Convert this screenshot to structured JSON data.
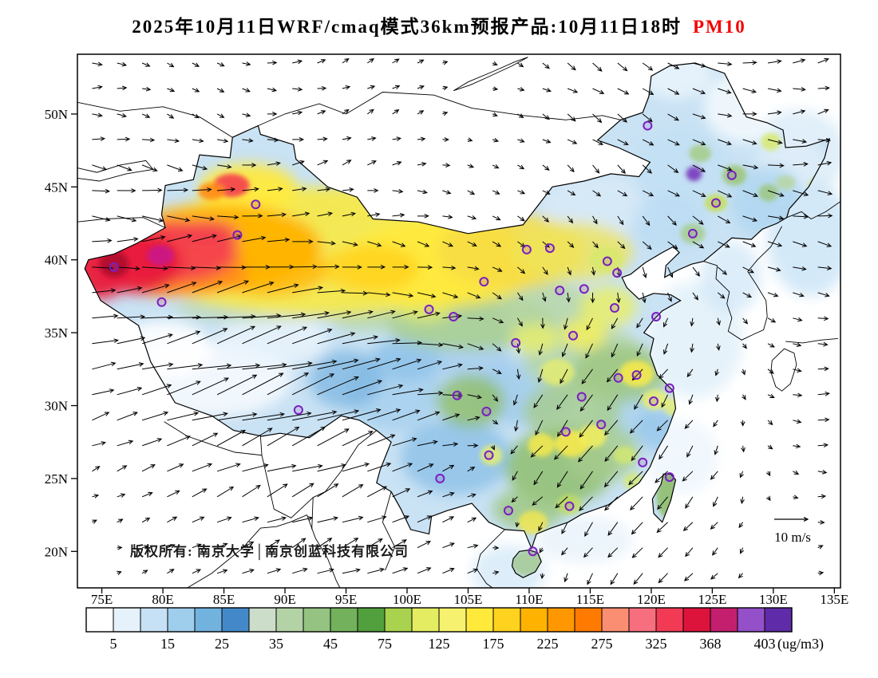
{
  "title": {
    "main": "2025年10月11日WRF/cmaq模式36km预报产品:10月11日18时",
    "pollutant": "PM10",
    "pollutant_color": "#f40000"
  },
  "map": {
    "copyright": "版权所有: 南京大学│南京创蓝科技有限公司",
    "wind_ref_label": "10 m/s"
  },
  "axes": {
    "lat": {
      "values": [
        20,
        25,
        30,
        35,
        40,
        45,
        50
      ],
      "labels": [
        "20N",
        "25N",
        "30N",
        "35N",
        "40N",
        "45N",
        "50N"
      ]
    },
    "lon": {
      "values": [
        75,
        80,
        85,
        90,
        95,
        100,
        105,
        110,
        115,
        120,
        125,
        130,
        135
      ],
      "labels": [
        "75E",
        "80E",
        "85E",
        "90E",
        "95E",
        "100E",
        "105E",
        "110E",
        "115E",
        "120E",
        "125E",
        "130E",
        "135E"
      ]
    }
  },
  "colorbar": {
    "unit": "(ug/m3)",
    "labels": [
      "5",
      "15",
      "25",
      "35",
      "45",
      "75",
      "125",
      "175",
      "225",
      "275",
      "325",
      "368",
      "403"
    ],
    "colors": [
      "#FFFFFF",
      "#E6F2FB",
      "#C6E1F5",
      "#9FCDEC",
      "#72B2DF",
      "#4389C9",
      "#CCDDC9",
      "#B3D2A6",
      "#95C381",
      "#73B15C",
      "#529F3E",
      "#A9D24E",
      "#E4EC62",
      "#F7F170",
      "#FFE93B",
      "#FFD21F",
      "#FFB300",
      "#FF9800",
      "#FF7A00",
      "#FA8E72",
      "#F76F7E",
      "#F23A55",
      "#DC143C",
      "#C41E6E",
      "#9450C8",
      "#5F2BA8"
    ]
  },
  "chart_data": {
    "type": "heatmap",
    "title": "2025年10月11日WRF/cmaq模式36km预报产品:10月11日18时 PM10",
    "pollutant": "PM10",
    "unit": "ug/m3",
    "lon_axis_deg": [
      75,
      135
    ],
    "lat_axis_deg": [
      20,
      50
    ],
    "colorbar_labels": [
      5,
      15,
      25,
      35,
      45,
      75,
      125,
      175,
      225,
      275,
      325,
      368,
      403
    ],
    "wind_reference_ms": 10,
    "base_fill": "#C9E2F4",
    "field_blobs": [
      [
        84,
        31.8,
        6.5,
        2.6,
        "#F2F8FD",
        0.95
      ],
      [
        80,
        33.8,
        4,
        2,
        "#FFFFFF",
        0.9
      ],
      [
        89,
        34.5,
        4.5,
        1.8,
        "#E9F3FB",
        0.85
      ],
      [
        127.8,
        50.5,
        3.5,
        2.5,
        "#F2F8FD",
        0.9
      ],
      [
        122,
        52.8,
        3,
        1.8,
        "#EAF4FB",
        0.85
      ],
      [
        131.5,
        46.5,
        3,
        2,
        "#E2EFF9",
        0.8
      ],
      [
        99,
        31,
        4,
        2.8,
        "#A9D2EE",
        0.9
      ],
      [
        95,
        31.8,
        3,
        2,
        "#79B4E0",
        0.7
      ],
      [
        104,
        26.5,
        4.5,
        2.6,
        "#8FC2E8",
        0.85
      ],
      [
        109.5,
        30.8,
        4,
        2.2,
        "#9FCBEC",
        0.8
      ],
      [
        118,
        29.5,
        2.5,
        1.8,
        "#A9D2EE",
        0.8
      ],
      [
        120.8,
        28.3,
        2,
        1.5,
        "#8FC2E8",
        0.7
      ],
      [
        116,
        43.8,
        5,
        2,
        "#D8EAF7",
        0.85
      ],
      [
        122.5,
        46,
        4,
        3,
        "#C2DFF3",
        0.85
      ],
      [
        129.5,
        44,
        3,
        2.5,
        "#AFD6F0",
        0.8
      ],
      [
        121.5,
        42.5,
        3,
        2,
        "#BBDCF2",
        0.8
      ],
      [
        100,
        33.2,
        3,
        1.5,
        "#8FC2E8",
        0.8
      ],
      [
        111.5,
        32.5,
        2.5,
        1.5,
        "#ABD3EE",
        0.7
      ],
      [
        105.5,
        33,
        3,
        1.5,
        "#9FCBEC",
        0.7
      ],
      [
        105,
        35.8,
        7,
        2,
        "#A6CC8C",
        0.85
      ],
      [
        111.5,
        36.5,
        4,
        2,
        "#B7D6A2",
        0.8
      ],
      [
        114.5,
        33.2,
        5,
        2.4,
        "#B7D6A2",
        0.8
      ],
      [
        117.5,
        32.2,
        4,
        2,
        "#9CC57E",
        0.8
      ],
      [
        113.5,
        29.6,
        4,
        2,
        "#A6CC8C",
        0.8
      ],
      [
        112.5,
        25.8,
        4.5,
        2.6,
        "#8FBE6E",
        0.85
      ],
      [
        116,
        26.8,
        3,
        2,
        "#A6CC8C",
        0.8
      ],
      [
        110,
        22.9,
        3,
        1.4,
        "#9CC57E",
        0.8
      ],
      [
        105.2,
        30.3,
        2.8,
        1.8,
        "#8FBE6E",
        0.85
      ],
      [
        96.5,
        36.3,
        3,
        1.2,
        "#B7D6A2",
        0.8
      ],
      [
        92.5,
        37,
        2.5,
        1.1,
        "#CADFB8",
        0.75
      ],
      [
        121.5,
        23.9,
        1.1,
        1.7,
        "#8FBE6E",
        0.9
      ],
      [
        110,
        19.2,
        1.5,
        0.9,
        "#9CC57E",
        0.7
      ],
      [
        90,
        43.2,
        6,
        1.4,
        "#B7D6A2",
        0.6
      ],
      [
        96,
        43.6,
        5,
        1.4,
        "#CADFB8",
        0.55
      ],
      [
        88,
        36.7,
        7,
        1,
        "#B7D6A2",
        0.6
      ],
      [
        126.8,
        45.8,
        1,
        0.7,
        "#9CC57E",
        0.9
      ],
      [
        124,
        47.3,
        0.9,
        0.6,
        "#A6CC8C",
        0.9
      ],
      [
        129.6,
        44.6,
        0.8,
        0.6,
        "#9CC57E",
        0.85
      ],
      [
        131,
        45.3,
        0.8,
        0.5,
        "#B7D6A2",
        0.85
      ],
      [
        125.3,
        43.9,
        0.9,
        0.6,
        "#C3DE58",
        0.9
      ],
      [
        123.4,
        41.8,
        1,
        0.7,
        "#A6CC8C",
        0.85
      ],
      [
        101.5,
        36.6,
        2.2,
        0.9,
        "#DDE96E",
        0.85
      ],
      [
        110.5,
        34.6,
        2,
        1,
        "#E8EF6A",
        0.8
      ],
      [
        116.5,
        36.8,
        2.3,
        1.4,
        "#E8EF6A",
        0.85
      ],
      [
        114.5,
        34.9,
        1.8,
        1.1,
        "#F2EF5E",
        0.85
      ],
      [
        118.8,
        32.2,
        1.4,
        0.9,
        "#F5E94E",
        0.9
      ],
      [
        113.5,
        27.4,
        1.4,
        0.9,
        "#F5E94E",
        0.9
      ],
      [
        115.2,
        27.9,
        1.1,
        0.8,
        "#F2EF5E",
        0.85
      ],
      [
        111,
        27.3,
        1.1,
        0.8,
        "#F5E94E",
        0.85
      ],
      [
        110.3,
        22,
        1.2,
        0.8,
        "#F5E94E",
        0.8
      ],
      [
        106.9,
        26.6,
        0.9,
        0.7,
        "#E8EF6A",
        0.8
      ],
      [
        120.3,
        30.4,
        1.1,
        0.7,
        "#E8EF6A",
        0.8
      ],
      [
        112.3,
        32.3,
        1.4,
        0.9,
        "#E8EF6A",
        0.75
      ],
      [
        116.3,
        40,
        1.4,
        0.9,
        "#D6E96A",
        0.8
      ],
      [
        117.8,
        26.6,
        0.9,
        0.6,
        "#D6E96A",
        0.75
      ],
      [
        121.9,
        29.9,
        0.9,
        0.6,
        "#E8EF6A",
        0.75
      ],
      [
        129.8,
        48.1,
        0.8,
        0.6,
        "#D6E96A",
        0.85
      ],
      [
        133.6,
        45.1,
        0.7,
        0.5,
        "#C3DE58",
        0.8
      ],
      [
        118.5,
        24.8,
        0.8,
        0.6,
        "#D6E96A",
        0.7
      ],
      [
        113.3,
        23.2,
        1,
        0.7,
        "#C3DE58",
        0.75
      ],
      [
        93,
        40.6,
        16,
        4.4,
        "#F5E94E",
        0.95
      ],
      [
        103,
        39.8,
        8,
        3,
        "#FFE93B",
        0.9
      ],
      [
        108.5,
        40.6,
        6,
        2.6,
        "#F7DC43",
        0.85
      ],
      [
        113.5,
        40.6,
        5,
        2,
        "#EFE55A",
        0.8
      ],
      [
        97,
        39.4,
        4,
        1.6,
        "#FFD21F",
        0.85
      ],
      [
        88.5,
        39.3,
        5,
        1.8,
        "#FFB300",
        0.75
      ],
      [
        87,
        44.9,
        4,
        1.7,
        "#FFE93B",
        0.92
      ],
      [
        84.5,
        40.9,
        8.5,
        2.9,
        "#FFB300",
        0.95
      ],
      [
        80.5,
        40,
        6,
        2.5,
        "#FF8C1A",
        0.95
      ],
      [
        82,
        38.9,
        5,
        1.3,
        "#FF8C1A",
        0.85
      ],
      [
        81,
        40.6,
        5,
        2.1,
        "#F4434F",
        0.95
      ],
      [
        78,
        39.8,
        3.6,
        2.1,
        "#E81E3C",
        0.95
      ],
      [
        74.8,
        39.4,
        2.6,
        2.1,
        "#E81E3C",
        0.95
      ],
      [
        83.6,
        41.7,
        2.6,
        1,
        "#F4434F",
        0.9
      ],
      [
        85.6,
        45.1,
        1.5,
        0.8,
        "#F4434F",
        0.92
      ],
      [
        84,
        44.7,
        1.1,
        0.6,
        "#FF8C1A",
        0.9
      ],
      [
        76,
        39.7,
        1.2,
        0.9,
        "#B01030",
        0.95
      ],
      [
        79.8,
        40.3,
        1.1,
        0.7,
        "#C9158A",
        0.9
      ],
      [
        123.5,
        45.9,
        0.65,
        0.5,
        "#7B3FC0",
        0.95
      ]
    ],
    "sea_blobs": [
      [
        123.5,
        34.5,
        4,
        4,
        "#DFEFF9",
        0.8
      ],
      [
        126.5,
        38.8,
        2.5,
        2.5,
        "#CFE6F6",
        0.7
      ],
      [
        133,
        41.5,
        3.5,
        4,
        "#C6E1F5",
        0.75
      ],
      [
        132,
        47.3,
        4,
        3,
        "#CFE6F6",
        0.65
      ],
      [
        108.3,
        18.6,
        3,
        1.8,
        "#CFE6F6",
        0.7
      ],
      [
        114.5,
        20.8,
        4,
        1.6,
        "#DFEFF9",
        0.6
      ],
      [
        122.5,
        26.5,
        3,
        2.5,
        "#E6F2FB",
        0.6
      ]
    ],
    "stations": [
      [
        76,
        39.5
      ],
      [
        79.9,
        37.1
      ],
      [
        86.1,
        41.7
      ],
      [
        87.6,
        43.8
      ],
      [
        91.1,
        29.7
      ],
      [
        101.8,
        36.6
      ],
      [
        103.8,
        36.1
      ],
      [
        106.3,
        38.5
      ],
      [
        109.8,
        40.7
      ],
      [
        111.7,
        40.8
      ],
      [
        112.5,
        37.9
      ],
      [
        114.5,
        38
      ],
      [
        116.4,
        39.9
      ],
      [
        117.2,
        39.1
      ],
      [
        117,
        36.7
      ],
      [
        120.4,
        36.1
      ],
      [
        113.6,
        34.8
      ],
      [
        108.9,
        34.3
      ],
      [
        104.1,
        30.7
      ],
      [
        106.5,
        29.6
      ],
      [
        114.3,
        30.6
      ],
      [
        117.3,
        31.9
      ],
      [
        118.8,
        32.1
      ],
      [
        121.5,
        31.2
      ],
      [
        120.2,
        30.3
      ],
      [
        115.9,
        28.7
      ],
      [
        113,
        28.2
      ],
      [
        106.7,
        26.6
      ],
      [
        102.7,
        25
      ],
      [
        108.3,
        22.8
      ],
      [
        113.3,
        23.1
      ],
      [
        119.3,
        26.1
      ],
      [
        121.5,
        25.1
      ],
      [
        110.3,
        20
      ],
      [
        123.4,
        41.8
      ],
      [
        125.3,
        43.9
      ],
      [
        126.6,
        45.8
      ],
      [
        119.7,
        49.2
      ]
    ],
    "wind_field": {
      "lons": [
        75,
        80,
        85,
        90,
        95,
        100,
        105,
        110,
        115,
        120,
        125,
        130,
        135
      ],
      "lats": [
        50,
        45,
        40,
        35,
        30,
        25,
        20
      ],
      "u": [
        [
          3,
          2,
          2,
          3,
          2,
          2,
          1,
          2,
          3,
          3,
          4,
          4,
          3
        ],
        [
          5,
          6,
          5,
          4,
          3,
          3,
          2,
          2,
          2,
          3,
          4,
          5,
          4
        ],
        [
          6,
          8,
          8,
          7,
          5,
          4,
          3,
          2,
          1,
          2,
          3,
          4,
          4
        ],
        [
          8,
          10,
          12,
          12,
          10,
          8,
          5,
          0,
          -2,
          -2,
          0,
          2,
          3
        ],
        [
          6,
          10,
          13,
          14,
          12,
          8,
          4,
          -2,
          -4,
          -3,
          -1,
          2,
          4
        ],
        [
          2,
          4,
          6,
          8,
          7,
          5,
          2,
          -3,
          -4,
          -4,
          -2,
          1,
          3
        ],
        [
          1,
          2,
          3,
          4,
          5,
          4,
          3,
          0,
          -2,
          -3,
          -2,
          0,
          2
        ]
      ],
      "v": [
        [
          0,
          -1,
          -1,
          0,
          1,
          1,
          0,
          -1,
          -2,
          -2,
          -1,
          0,
          1
        ],
        [
          -1,
          -1,
          0,
          1,
          1,
          0,
          -1,
          -1,
          -2,
          -2,
          -2,
          -1,
          0
        ],
        [
          0,
          1,
          1,
          0,
          -1,
          -1,
          -1,
          -2,
          -2,
          -3,
          -2,
          -1,
          -1
        ],
        [
          1,
          2,
          3,
          3,
          2,
          1,
          -1,
          -3,
          -4,
          -3,
          -2,
          -1,
          0
        ],
        [
          2,
          3,
          4,
          5,
          4,
          2,
          0,
          -4,
          -5,
          -4,
          -2,
          -1,
          1
        ],
        [
          1,
          2,
          3,
          3,
          3,
          2,
          1,
          -3,
          -5,
          -4,
          -3,
          -1,
          0
        ],
        [
          0,
          1,
          1,
          2,
          2,
          2,
          1,
          -1,
          -3,
          -3,
          -2,
          -1,
          1
        ]
      ]
    }
  }
}
